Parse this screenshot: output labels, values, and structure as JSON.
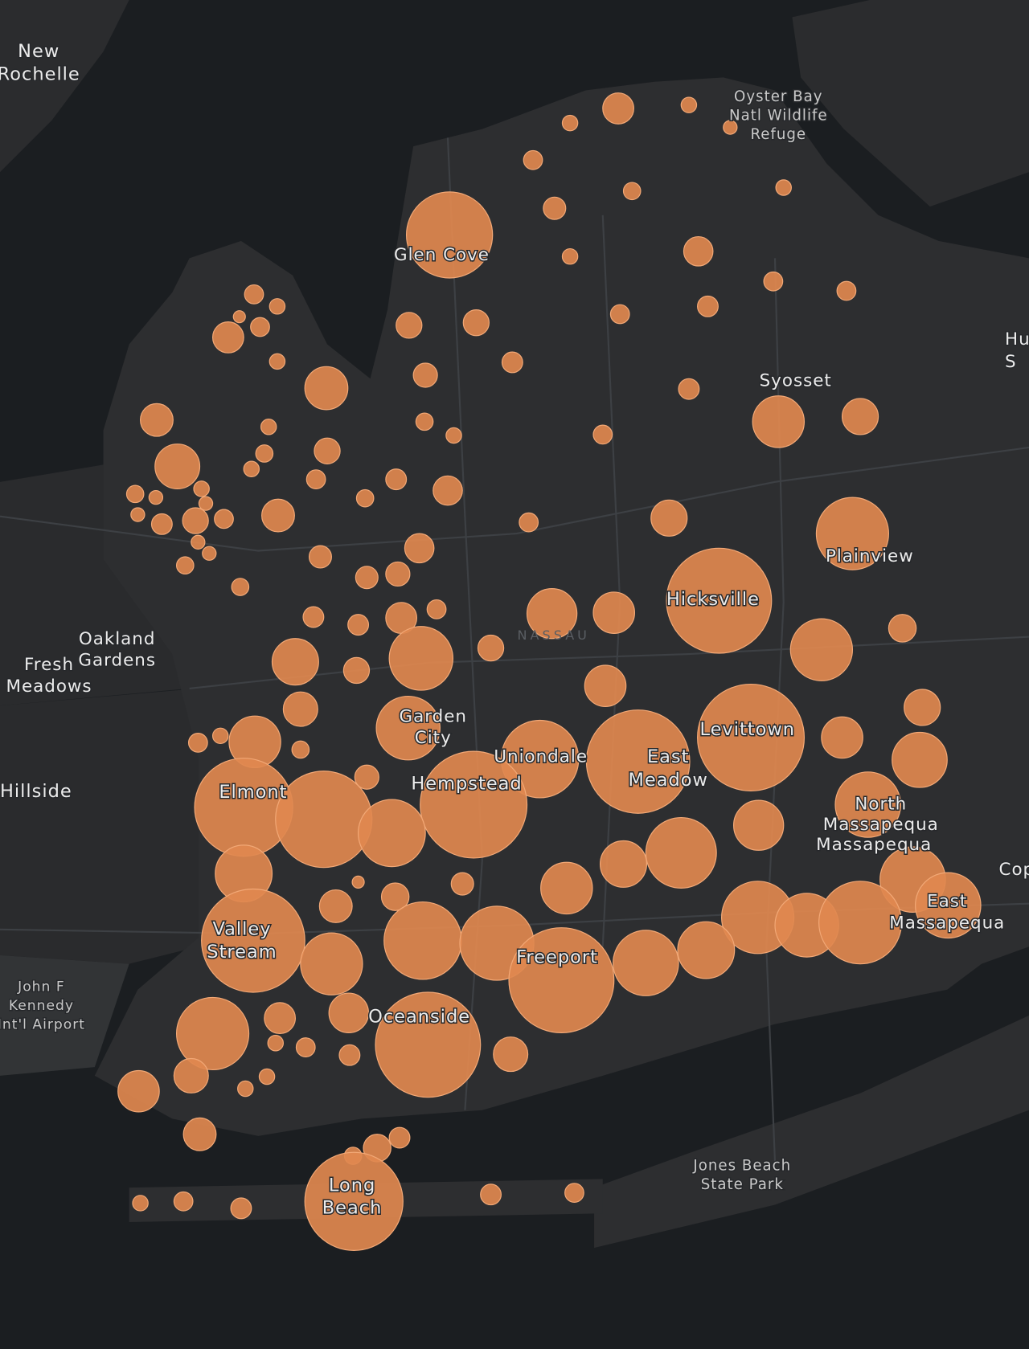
{
  "map": {
    "labels": [
      {
        "lines": [
          "New",
          "Rochelle"
        ]
      },
      {
        "lines": [
          "Oyster Bay",
          "Natl Wildlife",
          "Refuge"
        ]
      },
      {
        "lines": [
          "Glen Cove"
        ]
      },
      {
        "lines": [
          "Syosset"
        ]
      },
      {
        "lines": [
          "Hu",
          "S"
        ]
      },
      {
        "lines": [
          "Plainview"
        ]
      },
      {
        "lines": [
          "Hicksville"
        ]
      },
      {
        "lines": [
          "NASSAU"
        ]
      },
      {
        "lines": [
          "Oakland",
          "Gardens"
        ]
      },
      {
        "lines": [
          "Fresh",
          "Meadows"
        ]
      },
      {
        "lines": [
          "Garden",
          "City"
        ]
      },
      {
        "lines": [
          "Uniondale"
        ]
      },
      {
        "lines": [
          "East",
          "Meadow"
        ]
      },
      {
        "lines": [
          "Levittown"
        ]
      },
      {
        "lines": [
          "Hillside"
        ]
      },
      {
        "lines": [
          "Elmont"
        ]
      },
      {
        "lines": [
          "Hempstead"
        ]
      },
      {
        "lines": [
          "North",
          "Massapequa"
        ]
      },
      {
        "lines": [
          "Massapequa"
        ]
      },
      {
        "lines": [
          "Cop"
        ]
      },
      {
        "lines": [
          "East",
          "Massapequa"
        ]
      },
      {
        "lines": [
          "Valley",
          "Stream"
        ]
      },
      {
        "lines": [
          "Freeport"
        ]
      },
      {
        "lines": [
          "John F",
          "Kennedy",
          "Int'l Airport"
        ]
      },
      {
        "lines": [
          "Oceanside"
        ]
      },
      {
        "lines": [
          "Jones Beach",
          "State Park"
        ]
      },
      {
        "lines": [
          "Long",
          "Beach"
        ]
      }
    ]
  }
}
